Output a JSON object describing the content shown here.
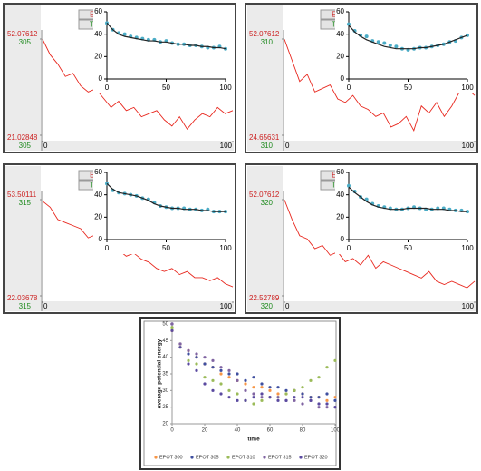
{
  "chart_data": [
    {
      "type": "line",
      "buttons": [
        "EPOT",
        "TEMP"
      ],
      "temps": [
        305,
        305
      ],
      "xlim": [
        0,
        100
      ],
      "xticks": [
        0,
        100
      ],
      "ylim": [
        21.02848,
        52.07612
      ],
      "yticks": [
        21.02848,
        52.07612
      ],
      "x": [
        0,
        4,
        8,
        12,
        16,
        20,
        24,
        28,
        32,
        36,
        40,
        44,
        48,
        52,
        56,
        60,
        64,
        68,
        72,
        76,
        80,
        84,
        88,
        92,
        96,
        100
      ],
      "series": [
        {
          "color": "#e8281f",
          "values": [
            52,
            47,
            44,
            40,
            41,
            37,
            35,
            36,
            33,
            30,
            32,
            29,
            30,
            27,
            28,
            29,
            26,
            24,
            27,
            23,
            26,
            28,
            27,
            30,
            28,
            29
          ]
        }
      ],
      "inset": {
        "type": "scatter",
        "xlim": [
          0,
          100
        ],
        "xticks": [
          0,
          50,
          100
        ],
        "ylim": [
          0,
          60
        ],
        "yticks": [
          0,
          20,
          40,
          60
        ],
        "x": [
          0,
          5,
          10,
          15,
          20,
          25,
          30,
          35,
          40,
          45,
          50,
          55,
          60,
          65,
          70,
          75,
          80,
          85,
          90,
          95,
          100
        ],
        "series": [
          {
            "type": "scatter",
            "color": "#4bacc6",
            "values": [
              50,
              44,
              41,
              40,
              38,
              37,
              36,
              35,
              35,
              33,
              34,
              32,
              31,
              31,
              30,
              30,
              29,
              28,
              28,
              29,
              27
            ]
          },
          {
            "type": "line",
            "color": "#222222",
            "values": [
              50,
              44,
              40,
              38,
              37,
              36,
              35,
              34,
              34,
              33,
              33,
              32,
              31,
              31,
              30,
              30,
              29,
              29,
              28,
              28,
              27
            ]
          }
        ]
      }
    },
    {
      "type": "line",
      "buttons": [
        "EPOT",
        "TEMP"
      ],
      "temps": [
        310,
        310
      ],
      "xlim": [
        0,
        100
      ],
      "xticks": [
        0,
        100
      ],
      "ylim": [
        24.65631,
        52.07612
      ],
      "yticks": [
        24.65631,
        52.07612
      ],
      "x": [
        0,
        4,
        8,
        12,
        16,
        20,
        24,
        28,
        32,
        36,
        40,
        44,
        48,
        52,
        56,
        60,
        64,
        68,
        72,
        76,
        80,
        84,
        88,
        92,
        96,
        100
      ],
      "series": [
        {
          "color": "#e8281f",
          "values": [
            52,
            46,
            40,
            42,
            37,
            38,
            39,
            35,
            34,
            36,
            33,
            32,
            30,
            31,
            27,
            28,
            30,
            26,
            33,
            31,
            34,
            30,
            33,
            37,
            38,
            36
          ]
        }
      ],
      "inset": {
        "type": "scatter",
        "xlim": [
          0,
          100
        ],
        "xticks": [
          0,
          50,
          100
        ],
        "ylim": [
          0,
          60
        ],
        "yticks": [
          0,
          20,
          40,
          60
        ],
        "x": [
          0,
          5,
          10,
          15,
          20,
          25,
          30,
          35,
          40,
          45,
          50,
          55,
          60,
          65,
          70,
          75,
          80,
          85,
          90,
          95,
          100
        ],
        "series": [
          {
            "type": "scatter",
            "color": "#4bacc6",
            "values": [
              49,
              43,
              39,
              38,
              34,
              33,
              32,
              30,
              29,
              27,
              26,
              27,
              28,
              28,
              29,
              30,
              31,
              33,
              34,
              37,
              39
            ]
          },
          {
            "type": "line",
            "color": "#222222",
            "values": [
              48,
              42,
              38,
              35,
              33,
              31,
              29,
              28,
              27,
              27,
              27,
              27,
              28,
              28,
              29,
              30,
              31,
              33,
              35,
              37,
              39
            ]
          }
        ]
      }
    },
    {
      "type": "line",
      "buttons": [
        "EPOT",
        "TEMP"
      ],
      "temps": [
        315,
        315
      ],
      "xlim": [
        0,
        100
      ],
      "xticks": [
        0,
        100
      ],
      "ylim": [
        22.03678,
        53.50111
      ],
      "yticks": [
        22.03678,
        53.50111
      ],
      "x": [
        0,
        4,
        8,
        12,
        16,
        20,
        24,
        28,
        32,
        36,
        40,
        44,
        48,
        52,
        56,
        60,
        64,
        68,
        72,
        76,
        80,
        84,
        88,
        92,
        96,
        100
      ],
      "series": [
        {
          "color": "#e8281f",
          "values": [
            53,
            51,
            47,
            46,
            45,
            44,
            41,
            42,
            40,
            38,
            37,
            35,
            36,
            34,
            33,
            31,
            30,
            31,
            29,
            30,
            28,
            28,
            27,
            28,
            26,
            25
          ]
        }
      ],
      "inset": {
        "type": "scatter",
        "xlim": [
          0,
          100
        ],
        "xticks": [
          0,
          50,
          100
        ],
        "ylim": [
          0,
          60
        ],
        "yticks": [
          0,
          20,
          40,
          60
        ],
        "x": [
          0,
          5,
          10,
          15,
          20,
          25,
          30,
          35,
          40,
          45,
          50,
          55,
          60,
          65,
          70,
          75,
          80,
          85,
          90,
          95,
          100
        ],
        "series": [
          {
            "type": "scatter",
            "color": "#4bacc6",
            "values": [
              50,
              44,
              42,
              41,
              40,
              39,
              37,
              36,
              33,
              30,
              29,
              28,
              28,
              28,
              27,
              27,
              26,
              27,
              25,
              25,
              25
            ]
          },
          {
            "type": "line",
            "color": "#222222",
            "values": [
              50,
              45,
              42,
              41,
              40,
              39,
              37,
              35,
              32,
              30,
              29,
              28,
              28,
              27,
              27,
              27,
              26,
              26,
              25,
              25,
              25
            ]
          }
        ]
      }
    },
    {
      "type": "line",
      "buttons": [
        "EPOT",
        "TEMP"
      ],
      "temps": [
        320,
        320
      ],
      "xlim": [
        0,
        100
      ],
      "xticks": [
        0,
        100
      ],
      "ylim": [
        22.52789,
        52.07612
      ],
      "yticks": [
        22.52789,
        52.07612
      ],
      "x": [
        0,
        4,
        8,
        12,
        16,
        20,
        24,
        28,
        32,
        36,
        40,
        44,
        48,
        52,
        56,
        60,
        64,
        68,
        72,
        76,
        80,
        84,
        88,
        92,
        96,
        100
      ],
      "series": [
        {
          "color": "#e8281f",
          "values": [
            52,
            46,
            41,
            40,
            37,
            38,
            35,
            36,
            33,
            34,
            32,
            35,
            31,
            33,
            32,
            31,
            30,
            29,
            28,
            30,
            27,
            26,
            27,
            26,
            25,
            27
          ]
        }
      ],
      "inset": {
        "type": "scatter",
        "xlim": [
          0,
          100
        ],
        "xticks": [
          0,
          50,
          100
        ],
        "ylim": [
          0,
          60
        ],
        "yticks": [
          0,
          20,
          40,
          60
        ],
        "x": [
          0,
          5,
          10,
          15,
          20,
          25,
          30,
          35,
          40,
          45,
          50,
          55,
          60,
          65,
          70,
          75,
          80,
          85,
          90,
          95,
          100
        ],
        "series": [
          {
            "type": "scatter",
            "color": "#4bacc6",
            "values": [
              48,
              43,
              38,
              36,
              32,
              30,
              29,
              28,
              27,
              27,
              28,
              29,
              28,
              27,
              27,
              28,
              28,
              27,
              26,
              26,
              25
            ]
          },
          {
            "type": "line",
            "color": "#222222",
            "values": [
              47,
              42,
              38,
              34,
              31,
              29,
              28,
              27,
              27,
              27,
              28,
              28,
              28,
              28,
              27,
              27,
              27,
              26,
              26,
              25,
              25
            ]
          }
        ]
      }
    },
    {
      "type": "scatter",
      "y_label": "average potential energy",
      "x_label": "time",
      "xlim": [
        0,
        100
      ],
      "xticks": [
        0,
        20,
        40,
        60,
        80,
        100
      ],
      "ylim": [
        20,
        50
      ],
      "yticks": [
        20,
        25,
        30,
        35,
        40,
        45,
        50
      ],
      "legend": "bottom",
      "x": [
        0,
        5,
        10,
        15,
        20,
        25,
        30,
        35,
        40,
        45,
        50,
        55,
        60,
        65,
        70,
        75,
        80,
        85,
        90,
        95,
        100
      ],
      "series": [
        {
          "name": "EPOT 300",
          "color": "#f79646",
          "values": [
            48,
            44,
            42,
            40,
            38,
            37,
            35,
            34,
            33,
            32,
            31,
            31,
            30,
            29,
            29,
            30,
            29,
            28,
            28,
            27,
            28
          ]
        },
        {
          "name": "EPOT 305",
          "color": "#3f4f9f",
          "values": [
            50,
            44,
            41,
            40,
            38,
            37,
            36,
            35,
            35,
            33,
            34,
            32,
            31,
            31,
            30,
            30,
            29,
            28,
            28,
            29,
            27
          ]
        },
        {
          "name": "EPOT 310",
          "color": "#9bbb59",
          "values": [
            49,
            43,
            39,
            38,
            34,
            33,
            32,
            30,
            29,
            27,
            26,
            27,
            28,
            28,
            29,
            30,
            31,
            33,
            34,
            37,
            39
          ]
        },
        {
          "name": "EPOT 315",
          "color": "#8064a2",
          "values": [
            50,
            44,
            42,
            41,
            40,
            39,
            37,
            36,
            33,
            30,
            29,
            28,
            28,
            28,
            27,
            27,
            26,
            27,
            25,
            25,
            25
          ]
        },
        {
          "name": "EPOT 320",
          "color": "#5a4aa0",
          "values": [
            48,
            43,
            38,
            36,
            32,
            30,
            29,
            28,
            27,
            27,
            28,
            29,
            28,
            27,
            27,
            28,
            28,
            27,
            26,
            26,
            25
          ]
        }
      ]
    }
  ]
}
